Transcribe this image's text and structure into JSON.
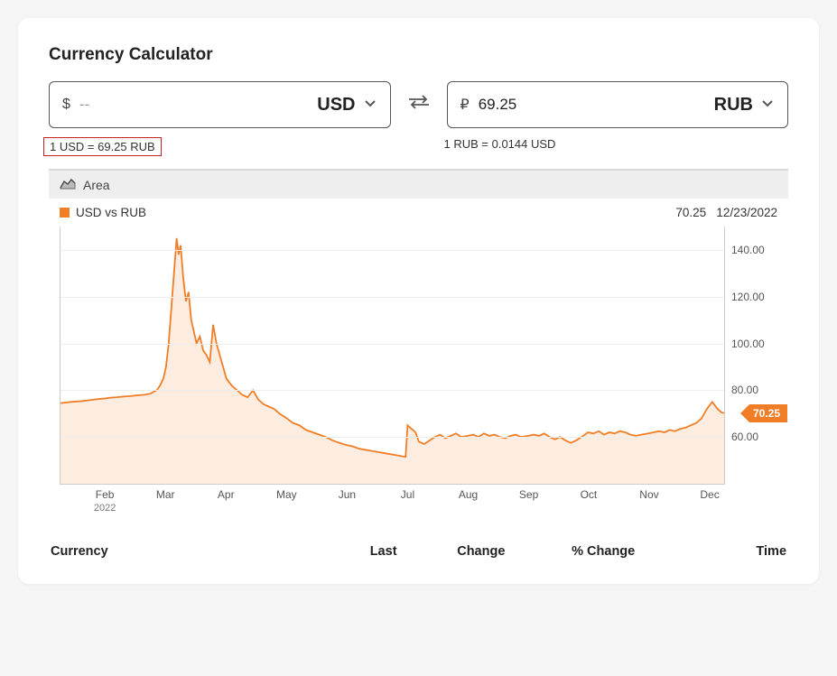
{
  "title": "Currency Calculator",
  "left": {
    "symbol": "$",
    "value": "",
    "placeholder": "--",
    "code": "USD",
    "rate_text": "1 USD = 69.25 RUB",
    "highlighted": true
  },
  "right": {
    "symbol": "₽",
    "value": "69.25",
    "placeholder": "",
    "code": "RUB",
    "rate_text": "1 RUB = 0.0144 USD",
    "highlighted": false
  },
  "chart": {
    "toolbar_label": "Area",
    "legend_label": "USD vs RUB",
    "legend_color": "#f07e26",
    "hover_value": "70.25",
    "hover_date": "12/23/2022",
    "callout_value": "70.25",
    "type": "area",
    "line_color": "#f07e26",
    "fill_color": "#fdece0",
    "grid_color": "#eeeeee",
    "axis_color": "#cccccc",
    "background_color": "#ffffff",
    "ylim": [
      40,
      150
    ],
    "yticks": [
      60,
      80,
      100,
      120,
      140
    ],
    "ytick_labels": [
      "60.00",
      "80.00",
      "100.00",
      "120.00",
      "140.00"
    ],
    "xticks": [
      {
        "pos": 0.068,
        "label": "Feb",
        "sub": "2022"
      },
      {
        "pos": 0.159,
        "label": "Mar"
      },
      {
        "pos": 0.25,
        "label": "Apr"
      },
      {
        "pos": 0.341,
        "label": "May"
      },
      {
        "pos": 0.432,
        "label": "Jun"
      },
      {
        "pos": 0.523,
        "label": "Jul"
      },
      {
        "pos": 0.614,
        "label": "Aug"
      },
      {
        "pos": 0.705,
        "label": "Sep"
      },
      {
        "pos": 0.795,
        "label": "Oct"
      },
      {
        "pos": 0.886,
        "label": "Nov"
      },
      {
        "pos": 0.977,
        "label": "Dec"
      }
    ],
    "series": [
      [
        0.0,
        74.5
      ],
      [
        0.01,
        74.8
      ],
      [
        0.02,
        75.1
      ],
      [
        0.03,
        75.3
      ],
      [
        0.04,
        75.6
      ],
      [
        0.05,
        76.0
      ],
      [
        0.06,
        76.3
      ],
      [
        0.068,
        76.5
      ],
      [
        0.075,
        76.8
      ],
      [
        0.085,
        77.0
      ],
      [
        0.095,
        77.3
      ],
      [
        0.105,
        77.5
      ],
      [
        0.115,
        77.8
      ],
      [
        0.125,
        78.0
      ],
      [
        0.135,
        78.5
      ],
      [
        0.145,
        80.0
      ],
      [
        0.15,
        82.0
      ],
      [
        0.155,
        85.0
      ],
      [
        0.159,
        90.0
      ],
      [
        0.163,
        100.0
      ],
      [
        0.167,
        115.0
      ],
      [
        0.171,
        130.0
      ],
      [
        0.175,
        145.0
      ],
      [
        0.178,
        138.0
      ],
      [
        0.181,
        142.0
      ],
      [
        0.185,
        128.0
      ],
      [
        0.189,
        118.0
      ],
      [
        0.193,
        122.0
      ],
      [
        0.197,
        110.0
      ],
      [
        0.201,
        105.0
      ],
      [
        0.205,
        100.0
      ],
      [
        0.21,
        103.0
      ],
      [
        0.215,
        97.0
      ],
      [
        0.22,
        95.0
      ],
      [
        0.225,
        92.0
      ],
      [
        0.23,
        108.0
      ],
      [
        0.235,
        100.0
      ],
      [
        0.24,
        95.0
      ],
      [
        0.245,
        90.0
      ],
      [
        0.25,
        85.0
      ],
      [
        0.258,
        82.0
      ],
      [
        0.266,
        80.0
      ],
      [
        0.274,
        78.0
      ],
      [
        0.282,
        77.0
      ],
      [
        0.29,
        80.0
      ],
      [
        0.298,
        76.0
      ],
      [
        0.306,
        74.0
      ],
      [
        0.314,
        73.0
      ],
      [
        0.322,
        72.0
      ],
      [
        0.33,
        70.0
      ],
      [
        0.341,
        68.0
      ],
      [
        0.35,
        66.0
      ],
      [
        0.36,
        65.0
      ],
      [
        0.37,
        63.0
      ],
      [
        0.38,
        62.0
      ],
      [
        0.39,
        61.0
      ],
      [
        0.4,
        60.0
      ],
      [
        0.41,
        58.5
      ],
      [
        0.42,
        57.5
      ],
      [
        0.432,
        56.5
      ],
      [
        0.44,
        56.0
      ],
      [
        0.45,
        55.0
      ],
      [
        0.46,
        54.5
      ],
      [
        0.47,
        54.0
      ],
      [
        0.48,
        53.5
      ],
      [
        0.49,
        53.0
      ],
      [
        0.5,
        52.5
      ],
      [
        0.51,
        52.0
      ],
      [
        0.52,
        51.5
      ],
      [
        0.523,
        65.0
      ],
      [
        0.527,
        64.0
      ],
      [
        0.531,
        63.0
      ],
      [
        0.535,
        62.0
      ],
      [
        0.54,
        58.0
      ],
      [
        0.548,
        57.0
      ],
      [
        0.556,
        58.5
      ],
      [
        0.564,
        60.0
      ],
      [
        0.572,
        61.0
      ],
      [
        0.58,
        59.5
      ],
      [
        0.588,
        60.5
      ],
      [
        0.596,
        61.5
      ],
      [
        0.604,
        60.0
      ],
      [
        0.614,
        60.5
      ],
      [
        0.622,
        61.0
      ],
      [
        0.63,
        60.0
      ],
      [
        0.638,
        61.5
      ],
      [
        0.646,
        60.5
      ],
      [
        0.654,
        61.0
      ],
      [
        0.662,
        60.0
      ],
      [
        0.67,
        59.5
      ],
      [
        0.678,
        60.5
      ],
      [
        0.686,
        61.0
      ],
      [
        0.694,
        60.0
      ],
      [
        0.705,
        60.5
      ],
      [
        0.713,
        61.0
      ],
      [
        0.721,
        60.5
      ],
      [
        0.729,
        61.5
      ],
      [
        0.737,
        60.0
      ],
      [
        0.745,
        59.0
      ],
      [
        0.753,
        60.0
      ],
      [
        0.761,
        58.5
      ],
      [
        0.769,
        57.5
      ],
      [
        0.777,
        58.5
      ],
      [
        0.785,
        60.0
      ],
      [
        0.795,
        62.0
      ],
      [
        0.803,
        61.5
      ],
      [
        0.811,
        62.5
      ],
      [
        0.819,
        61.0
      ],
      [
        0.827,
        62.0
      ],
      [
        0.835,
        61.5
      ],
      [
        0.843,
        62.5
      ],
      [
        0.851,
        62.0
      ],
      [
        0.859,
        61.0
      ],
      [
        0.867,
        60.5
      ],
      [
        0.875,
        61.0
      ],
      [
        0.886,
        61.5
      ],
      [
        0.894,
        62.0
      ],
      [
        0.902,
        62.5
      ],
      [
        0.91,
        62.0
      ],
      [
        0.918,
        63.0
      ],
      [
        0.926,
        62.5
      ],
      [
        0.934,
        63.5
      ],
      [
        0.942,
        64.0
      ],
      [
        0.95,
        65.0
      ],
      [
        0.958,
        66.0
      ],
      [
        0.966,
        68.0
      ],
      [
        0.974,
        72.0
      ],
      [
        0.982,
        75.0
      ],
      [
        0.99,
        72.0
      ],
      [
        0.996,
        70.5
      ],
      [
        1.0,
        70.25
      ]
    ]
  },
  "table": {
    "headers": {
      "currency": "Currency",
      "last": "Last",
      "change": "Change",
      "pchange": "% Change",
      "time": "Time"
    }
  },
  "highlight_border_color": "#c22222"
}
